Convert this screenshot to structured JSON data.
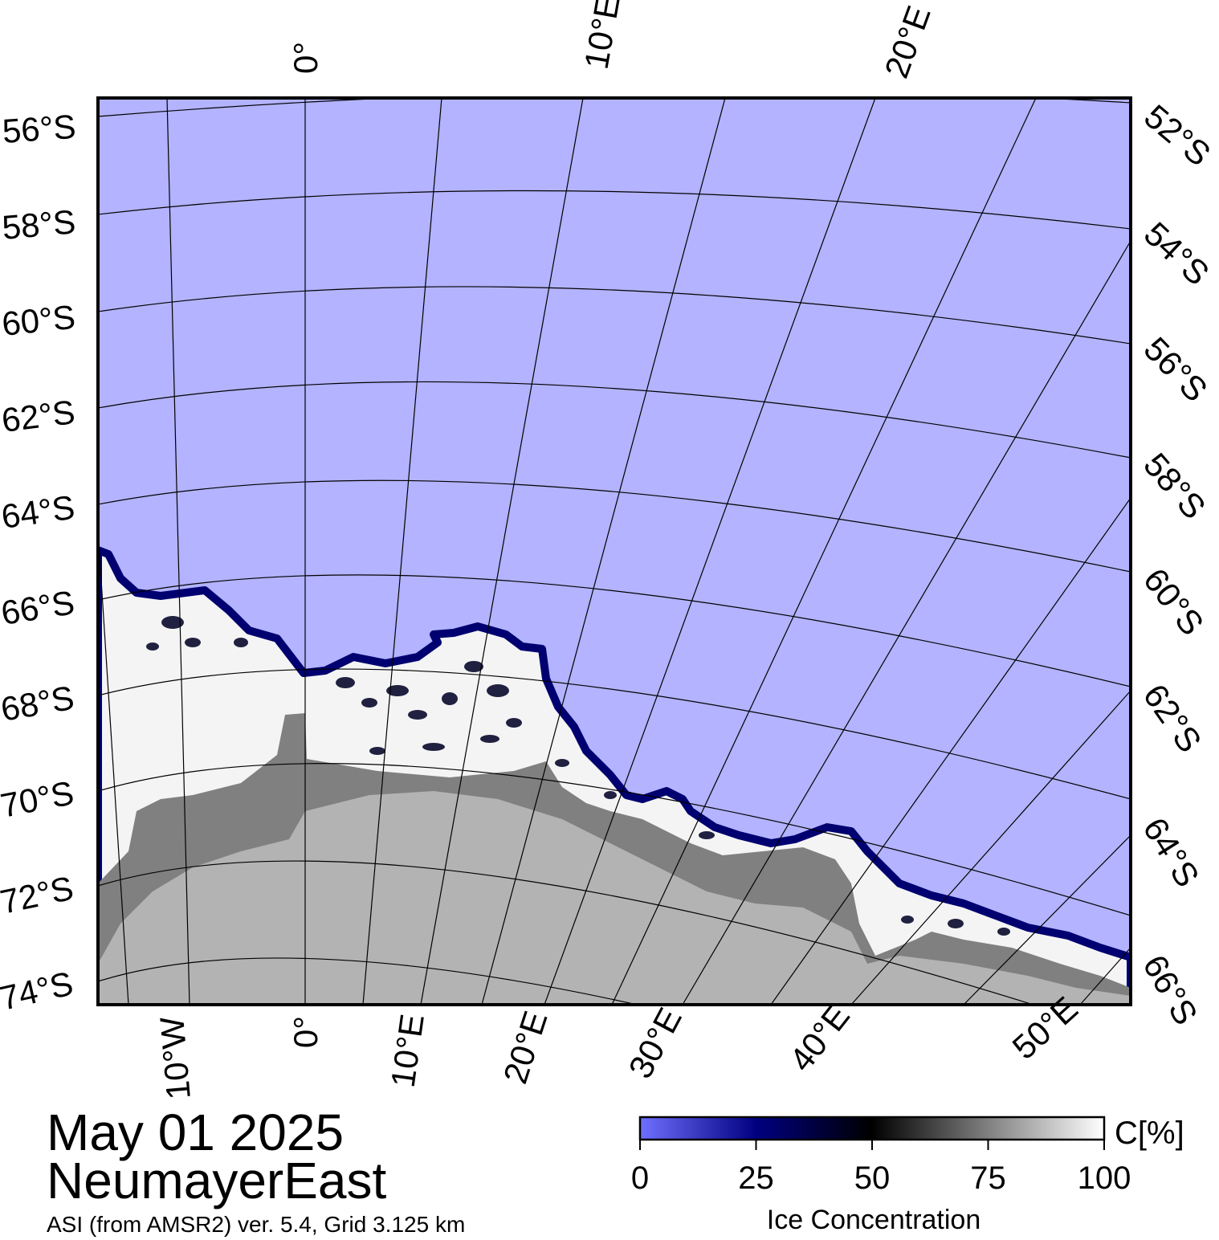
{
  "header": {
    "date": "May 01 2025",
    "region": "NeumayerEast",
    "product": "ASI (from AMSR2) ver. 5.4,  Grid 3.125 km"
  },
  "map": {
    "colors": {
      "ocean": "#b3b3ff",
      "land": "#b3b3b3",
      "ice_shelf": "#808080",
      "frame": "#000000",
      "gridline": "#000000"
    },
    "graticule": {
      "top_labels": [
        "0°",
        "10°E",
        "20°E"
      ],
      "bottom_labels": [
        "10°W",
        "0°",
        "10°E",
        "20°E",
        "30°E",
        "40°E",
        "50°E"
      ],
      "left_labels": [
        "56°S",
        "58°S",
        "60°S",
        "62°S",
        "64°S",
        "66°S",
        "68°S",
        "70°S",
        "72°S",
        "74°S"
      ],
      "right_labels": [
        "52°S",
        "54°S",
        "56°S",
        "58°S",
        "60°S",
        "62°S",
        "64°S",
        "66°S"
      ]
    }
  },
  "colorbar": {
    "unit_label": "C[%]",
    "title": "Ice Concentration",
    "ticks": [
      "0",
      "25",
      "50",
      "75",
      "100"
    ],
    "stops": [
      "#7070ff",
      "#000080",
      "#000000",
      "#808080",
      "#ffffff"
    ]
  }
}
